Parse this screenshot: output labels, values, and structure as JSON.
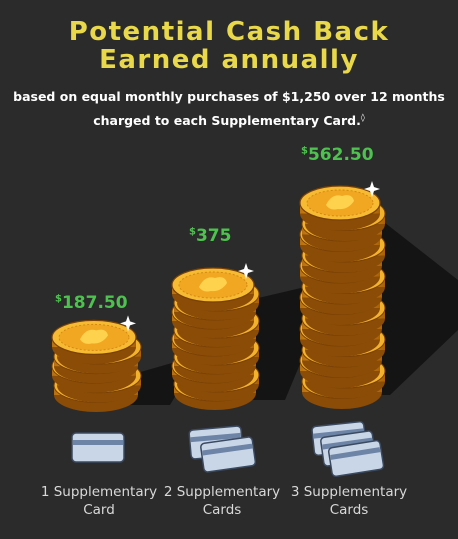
{
  "header": {
    "title_line1": "Potential Cash Back",
    "title_line2": "Earned annually",
    "subtitle_line1": "based on equal monthly purchases of $1,250 over 12 months",
    "subtitle_line2": "charged to each Supplementary Card.",
    "footnote_mark": "◊"
  },
  "colors": {
    "background": "#2b2b2b",
    "title": "#e8d84a",
    "amount": "#4ec24e",
    "coin": "#f0a825",
    "card": "#c9d6e8"
  },
  "stacks": [
    {
      "currency": "$",
      "amount": "187.50",
      "label_line1": "1 Supplementary",
      "label_line2": "Card",
      "coins": 6,
      "cards": 1
    },
    {
      "currency": "$",
      "amount": "375",
      "label_line1": "2 Supplementary",
      "label_line2": "Cards",
      "coins": 12,
      "cards": 2
    },
    {
      "currency": "$",
      "amount": "562.50",
      "label_line1": "3 Supplementary",
      "label_line2": "Cards",
      "coins": 18,
      "cards": 3
    }
  ],
  "icons": [
    "coin-stack-icon",
    "credit-card-icon"
  ]
}
